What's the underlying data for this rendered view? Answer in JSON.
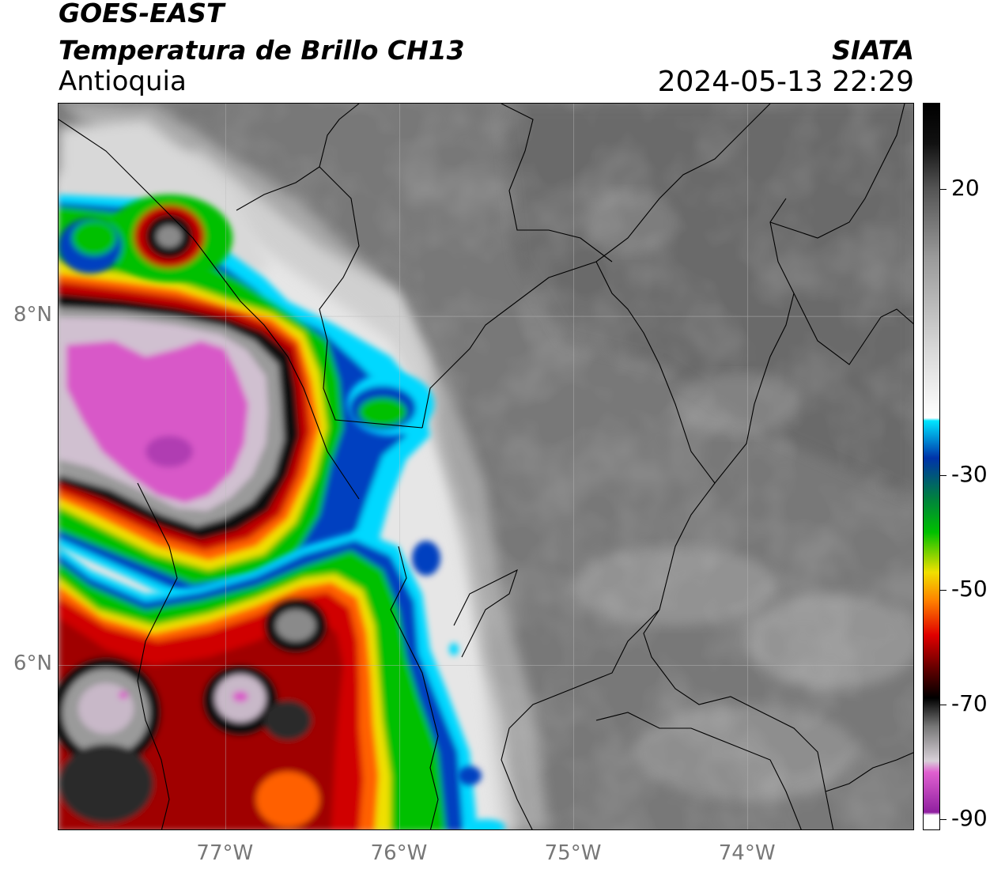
{
  "header": {
    "satellite": "GOES-EAST",
    "product": "Temperatura de Brillo CH13",
    "region": "Antioquia",
    "organization": "SIATA",
    "timestamp": "2024-05-13 22:29"
  },
  "map": {
    "lon_range": [
      -77.96,
      -73.04
    ],
    "lat_range": [
      5.05,
      9.22
    ],
    "lat_labels": [
      {
        "value": 8,
        "label": "8°N"
      },
      {
        "value": 6,
        "label": "6°N"
      }
    ],
    "lon_labels": [
      {
        "value": -77,
        "label": "77°W"
      },
      {
        "value": -76,
        "label": "76°W"
      },
      {
        "value": -75,
        "label": "75°W"
      },
      {
        "value": -74,
        "label": "74°W"
      }
    ],
    "gridlines": true,
    "background_gray": "#787878"
  },
  "colorbar": {
    "tick_labels": [
      {
        "value": 20,
        "label": "20"
      },
      {
        "value": -30,
        "label": "-30"
      },
      {
        "value": -50,
        "label": "-50"
      },
      {
        "value": -70,
        "label": "-70"
      },
      {
        "value": -90,
        "label": "-90"
      }
    ],
    "colors": {
      "warm_top": "#111111",
      "gray_mid": "#9a9a9a",
      "white": "#ffffff",
      "cyan": "#00e5ff",
      "blue": "#0033aa",
      "green": "#00c000",
      "yellow": "#f0e000",
      "orange": "#ff8000",
      "red": "#e00000",
      "dark_red": "#600000",
      "black": "#000000",
      "pink": "#e060d0",
      "purple": "#9020a0"
    }
  }
}
